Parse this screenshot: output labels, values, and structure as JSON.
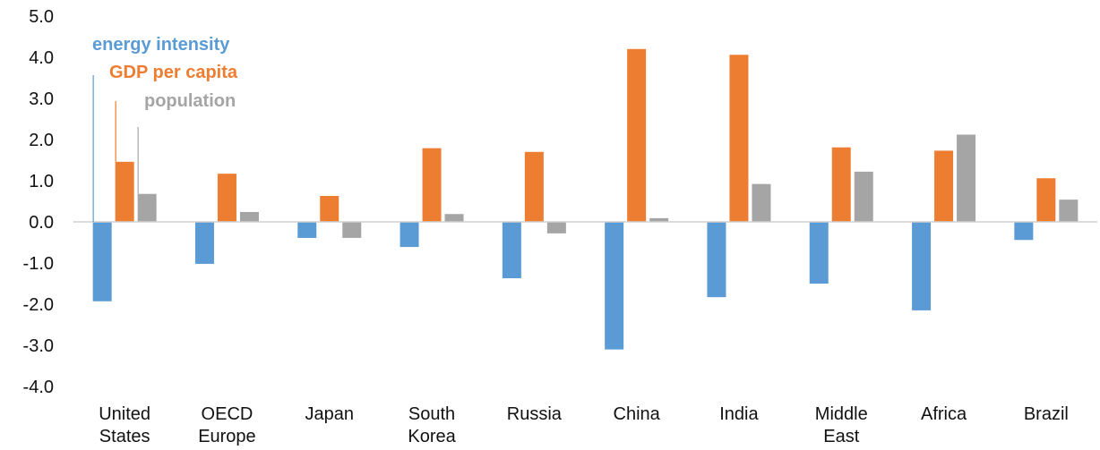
{
  "chart_data": {
    "type": "bar",
    "categories": [
      [
        "United",
        "States"
      ],
      [
        "OECD",
        "Europe"
      ],
      [
        "Japan"
      ],
      [
        "South",
        "Korea"
      ],
      [
        "Russia"
      ],
      [
        "China"
      ],
      [
        "India"
      ],
      [
        "Middle",
        "East"
      ],
      [
        "Africa"
      ],
      [
        "Brazil"
      ]
    ],
    "series": [
      {
        "name": "energy intensity",
        "color": "#5B9BD5",
        "values": [
          -1.93,
          -1.02,
          -0.39,
          -0.61,
          -1.37,
          -3.1,
          -1.83,
          -1.5,
          -2.15,
          -0.44
        ]
      },
      {
        "name": "GDP per capita",
        "color": "#ED7D31",
        "values": [
          1.46,
          1.17,
          0.63,
          1.79,
          1.7,
          4.2,
          4.06,
          1.81,
          1.73,
          1.06
        ]
      },
      {
        "name": "population",
        "color": "#A5A5A5",
        "values": [
          0.68,
          0.24,
          -0.39,
          0.19,
          -0.28,
          0.09,
          0.92,
          1.22,
          2.12,
          0.54
        ]
      }
    ],
    "ylim": [
      -4.0,
      5.0
    ],
    "yticks": [
      "5.0",
      "4.0",
      "3.0",
      "2.0",
      "1.0",
      "0.0",
      "-1.0",
      "-2.0",
      "-3.0",
      "-4.0"
    ],
    "ytick_values": [
      5,
      4,
      3,
      2,
      1,
      0,
      -1,
      -2,
      -3,
      -4
    ],
    "legend": "inline-top-left",
    "grid": false
  }
}
